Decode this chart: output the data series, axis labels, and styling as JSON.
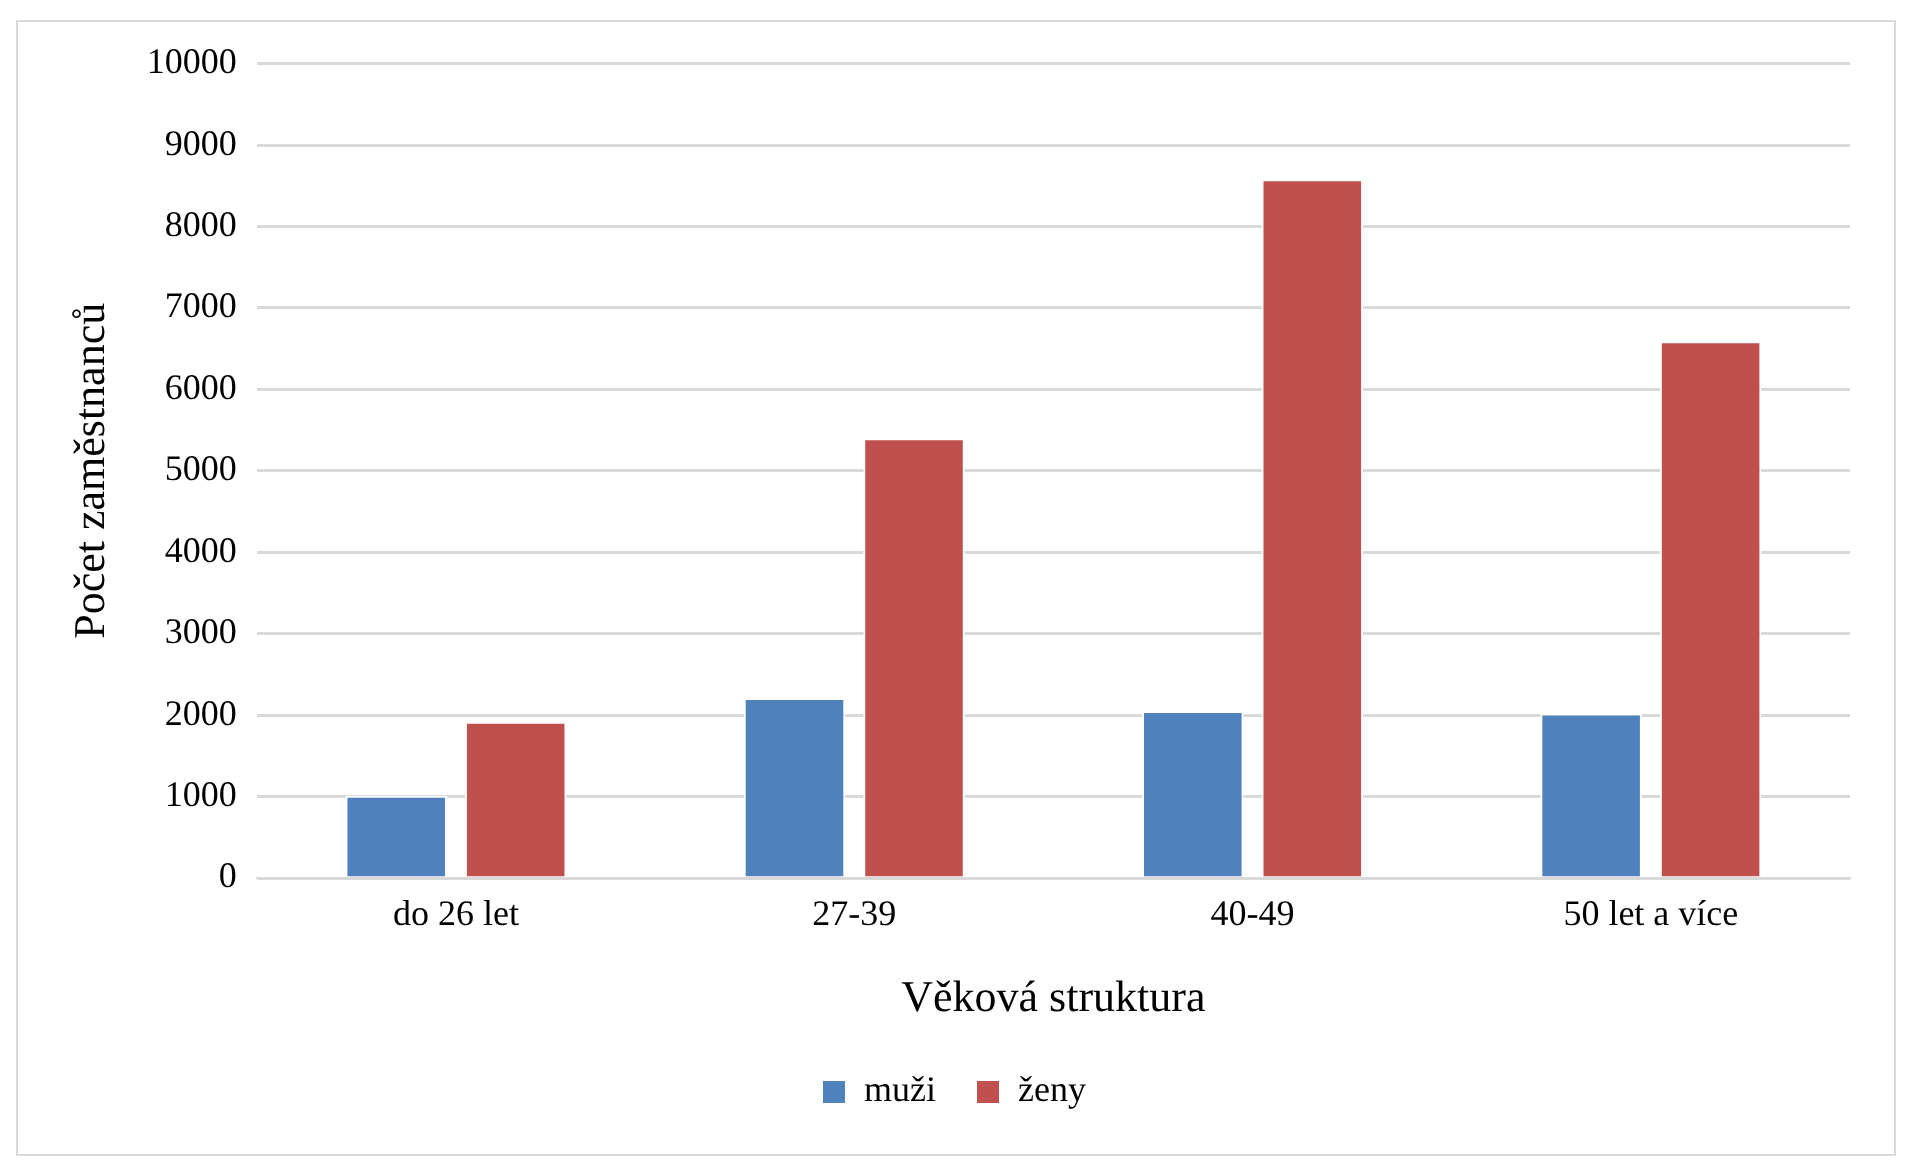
{
  "chart_data": {
    "type": "bar",
    "xlabel": "Věková struktura",
    "ylabel": "Počet zaměstnanců",
    "categories": [
      "do 26 let",
      "27-39",
      "40-49",
      "50 let a více"
    ],
    "series": [
      {
        "name": "muži",
        "color": "#4f81bd",
        "values": [
          1010,
          2210,
          2050,
          2020
        ]
      },
      {
        "name": "ženy",
        "color": "#c0504d",
        "values": [
          1920,
          5400,
          8580,
          6590
        ]
      }
    ],
    "ylim": [
      0,
      10000
    ],
    "yticks": [
      0,
      1000,
      2000,
      3000,
      4000,
      5000,
      6000,
      7000,
      8000,
      9000,
      10000
    ],
    "grid": "y",
    "legend": "bottom"
  }
}
